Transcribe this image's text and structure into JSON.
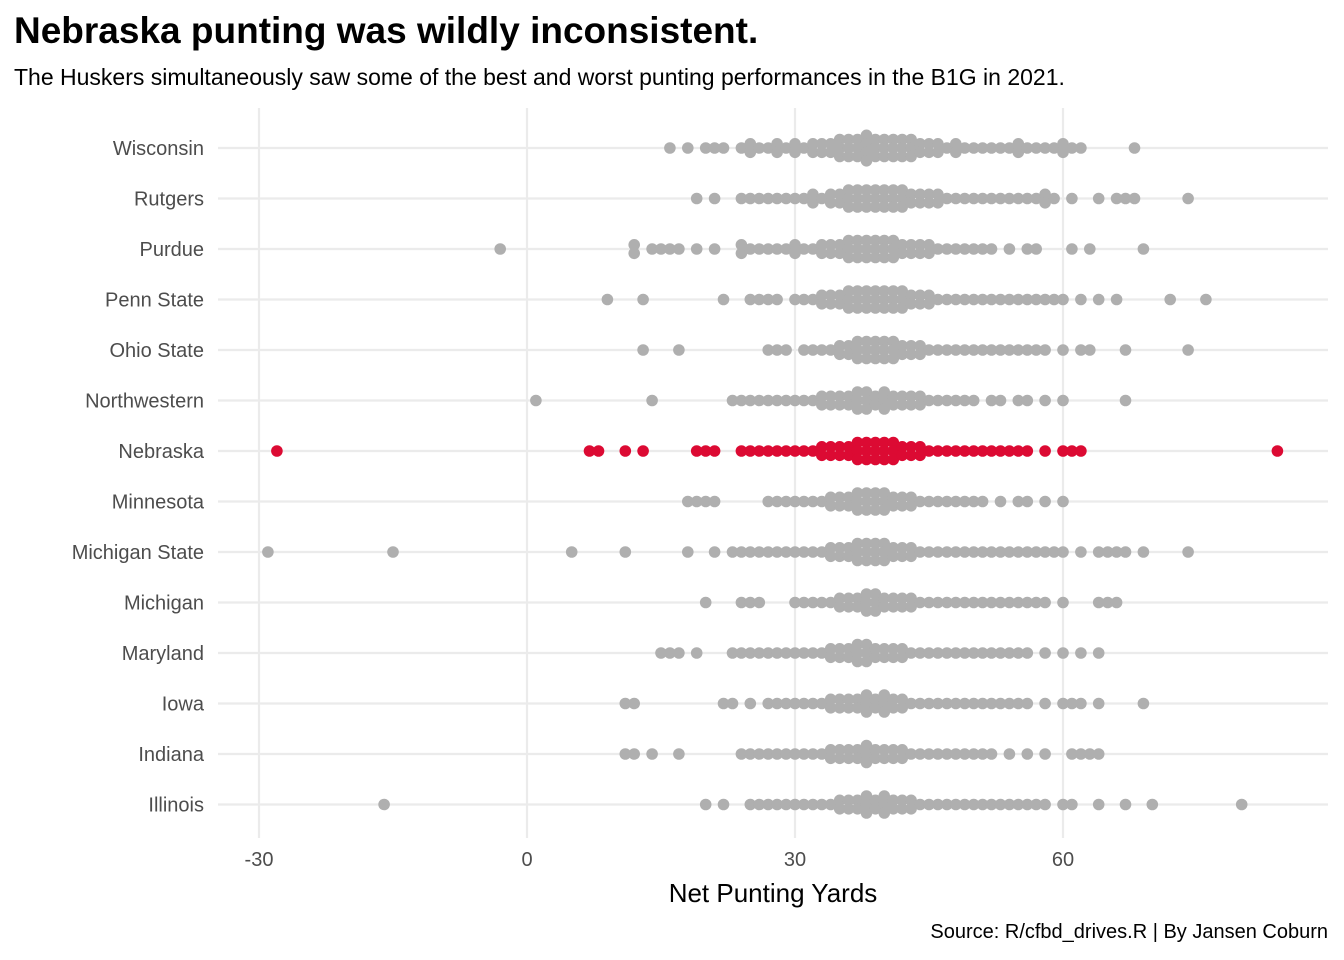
{
  "chart_data": {
    "type": "scatter",
    "subtype": "beeswarm",
    "title": "Nebraska punting was wildly inconsistent.",
    "subtitle": "The Huskers simultaneously saw some of the best and worst punting performances in the B1G in 2021.",
    "caption": "Source: R/cfbd_drives.R | By Jansen Coburn",
    "xlabel": "Net Punting Yards",
    "ylabel": "",
    "xlim": [
      -35,
      90
    ],
    "x_ticks": [
      -30,
      0,
      30,
      60
    ],
    "x_tick_labels": [
      "-30",
      "0",
      "30",
      "60"
    ],
    "grid": true,
    "legend": "none",
    "highlight": {
      "team": "Nebraska",
      "color": "#DC0A33"
    },
    "point_color": "#AFAFAF",
    "categories": [
      "Wisconsin",
      "Rutgers",
      "Purdue",
      "Penn State",
      "Ohio State",
      "Northwestern",
      "Nebraska",
      "Minnesota",
      "Michigan State",
      "Michigan",
      "Maryland",
      "Iowa",
      "Indiana",
      "Illinois"
    ],
    "series": [
      {
        "team": "Wisconsin",
        "values": [
          16,
          18,
          20,
          21,
          22,
          24,
          25,
          25,
          26,
          27,
          28,
          28,
          29,
          30,
          30,
          31,
          32,
          32,
          33,
          33,
          34,
          34,
          35,
          35,
          35,
          36,
          36,
          36,
          37,
          37,
          37,
          38,
          38,
          38,
          38,
          39,
          39,
          39,
          40,
          40,
          40,
          41,
          41,
          41,
          42,
          42,
          42,
          43,
          43,
          43,
          44,
          44,
          45,
          45,
          46,
          46,
          47,
          48,
          48,
          49,
          50,
          51,
          52,
          53,
          54,
          55,
          55,
          56,
          57,
          58,
          59,
          60,
          60,
          61,
          62,
          68
        ]
      },
      {
        "team": "Rutgers",
        "values": [
          19,
          21,
          24,
          25,
          26,
          27,
          28,
          29,
          30,
          31,
          32,
          32,
          33,
          34,
          34,
          35,
          35,
          36,
          36,
          36,
          37,
          37,
          37,
          38,
          38,
          38,
          39,
          39,
          39,
          40,
          40,
          40,
          41,
          41,
          41,
          42,
          42,
          42,
          43,
          43,
          44,
          44,
          45,
          45,
          46,
          46,
          47,
          48,
          49,
          50,
          51,
          52,
          53,
          54,
          55,
          56,
          57,
          58,
          58,
          59,
          61,
          64,
          66,
          67,
          68,
          74
        ]
      },
      {
        "team": "Purdue",
        "values": [
          -3,
          12,
          12,
          14,
          15,
          16,
          17,
          19,
          21,
          24,
          24,
          25,
          26,
          27,
          28,
          29,
          30,
          30,
          31,
          32,
          33,
          33,
          34,
          34,
          35,
          35,
          36,
          36,
          36,
          37,
          37,
          37,
          38,
          38,
          38,
          39,
          39,
          39,
          40,
          40,
          40,
          41,
          41,
          41,
          42,
          42,
          43,
          43,
          44,
          44,
          45,
          45,
          46,
          47,
          48,
          49,
          50,
          51,
          52,
          54,
          56,
          57,
          61,
          63,
          69
        ]
      },
      {
        "team": "Penn State",
        "values": [
          9,
          13,
          22,
          25,
          26,
          27,
          28,
          30,
          31,
          32,
          33,
          33,
          34,
          34,
          35,
          35,
          36,
          36,
          36,
          37,
          37,
          37,
          38,
          38,
          38,
          39,
          39,
          39,
          40,
          40,
          40,
          41,
          41,
          41,
          42,
          42,
          42,
          43,
          43,
          44,
          44,
          45,
          45,
          46,
          47,
          48,
          49,
          50,
          51,
          52,
          53,
          54,
          55,
          56,
          57,
          58,
          59,
          60,
          62,
          64,
          66,
          72,
          76
        ]
      },
      {
        "team": "Ohio State",
        "values": [
          13,
          17,
          27,
          28,
          29,
          31,
          32,
          33,
          34,
          35,
          35,
          36,
          36,
          37,
          37,
          37,
          38,
          38,
          38,
          39,
          39,
          39,
          40,
          40,
          40,
          41,
          41,
          41,
          42,
          42,
          43,
          43,
          44,
          44,
          45,
          46,
          47,
          48,
          49,
          50,
          51,
          52,
          53,
          54,
          55,
          56,
          57,
          58,
          60,
          62,
          63,
          67,
          74
        ]
      },
      {
        "team": "Northwestern",
        "values": [
          1,
          14,
          23,
          24,
          25,
          26,
          27,
          28,
          29,
          30,
          31,
          32,
          33,
          33,
          34,
          34,
          35,
          35,
          36,
          36,
          37,
          37,
          37,
          38,
          38,
          38,
          39,
          39,
          40,
          40,
          40,
          41,
          41,
          42,
          42,
          43,
          43,
          44,
          44,
          45,
          46,
          47,
          48,
          49,
          50,
          52,
          53,
          55,
          56,
          58,
          60,
          67
        ]
      },
      {
        "team": "Nebraska",
        "values": [
          -28,
          7,
          8,
          11,
          13,
          19,
          20,
          21,
          24,
          25,
          26,
          27,
          28,
          29,
          30,
          31,
          32,
          33,
          33,
          34,
          34,
          35,
          35,
          36,
          36,
          37,
          37,
          37,
          38,
          38,
          38,
          39,
          39,
          39,
          40,
          40,
          40,
          41,
          41,
          41,
          42,
          42,
          43,
          43,
          44,
          44,
          45,
          46,
          47,
          48,
          49,
          50,
          51,
          52,
          53,
          54,
          55,
          56,
          58,
          60,
          61,
          62,
          84
        ]
      },
      {
        "team": "Minnesota",
        "values": [
          18,
          19,
          20,
          21,
          27,
          28,
          29,
          30,
          31,
          32,
          33,
          34,
          34,
          35,
          35,
          36,
          36,
          37,
          37,
          37,
          38,
          38,
          38,
          39,
          39,
          39,
          40,
          40,
          40,
          41,
          41,
          42,
          42,
          43,
          43,
          44,
          45,
          46,
          47,
          48,
          49,
          50,
          51,
          53,
          55,
          56,
          58,
          60
        ]
      },
      {
        "team": "Michigan State",
        "values": [
          -29,
          -15,
          5,
          11,
          18,
          21,
          23,
          24,
          25,
          26,
          27,
          28,
          29,
          30,
          31,
          32,
          33,
          34,
          34,
          35,
          35,
          36,
          36,
          37,
          37,
          37,
          38,
          38,
          38,
          39,
          39,
          39,
          40,
          40,
          40,
          41,
          41,
          42,
          42,
          43,
          43,
          44,
          45,
          46,
          47,
          48,
          49,
          50,
          51,
          52,
          53,
          54,
          55,
          56,
          57,
          58,
          59,
          60,
          62,
          64,
          65,
          66,
          67,
          69,
          74
        ]
      },
      {
        "team": "Michigan",
        "values": [
          20,
          24,
          25,
          26,
          30,
          31,
          32,
          33,
          34,
          35,
          35,
          36,
          36,
          37,
          37,
          38,
          38,
          38,
          39,
          39,
          39,
          40,
          40,
          41,
          41,
          42,
          42,
          43,
          43,
          44,
          45,
          46,
          47,
          48,
          49,
          50,
          51,
          52,
          53,
          54,
          55,
          56,
          57,
          58,
          60,
          64,
          65,
          66
        ]
      },
      {
        "team": "Maryland",
        "values": [
          15,
          16,
          17,
          19,
          23,
          24,
          25,
          26,
          27,
          28,
          29,
          30,
          31,
          32,
          33,
          34,
          34,
          35,
          35,
          36,
          36,
          37,
          37,
          37,
          38,
          38,
          38,
          39,
          39,
          40,
          40,
          41,
          41,
          42,
          42,
          43,
          44,
          45,
          46,
          47,
          48,
          49,
          50,
          51,
          52,
          53,
          54,
          55,
          56,
          58,
          60,
          62,
          64
        ]
      },
      {
        "team": "Iowa",
        "values": [
          11,
          12,
          22,
          23,
          25,
          27,
          28,
          29,
          30,
          31,
          32,
          33,
          34,
          34,
          35,
          35,
          36,
          36,
          37,
          37,
          38,
          38,
          38,
          39,
          39,
          40,
          40,
          40,
          41,
          41,
          42,
          42,
          43,
          44,
          45,
          46,
          47,
          48,
          49,
          50,
          51,
          52,
          53,
          54,
          55,
          56,
          58,
          60,
          61,
          62,
          64,
          69
        ]
      },
      {
        "team": "Indiana",
        "values": [
          11,
          12,
          14,
          17,
          24,
          25,
          26,
          27,
          28,
          29,
          30,
          31,
          32,
          33,
          34,
          34,
          35,
          35,
          36,
          36,
          37,
          37,
          38,
          38,
          38,
          39,
          39,
          40,
          40,
          41,
          41,
          42,
          42,
          43,
          44,
          45,
          46,
          47,
          48,
          49,
          50,
          51,
          52,
          54,
          56,
          58,
          61,
          62,
          63,
          64
        ]
      },
      {
        "team": "Illinois",
        "values": [
          -16,
          20,
          22,
          25,
          26,
          27,
          28,
          29,
          30,
          31,
          32,
          33,
          34,
          35,
          35,
          36,
          36,
          37,
          37,
          38,
          38,
          38,
          39,
          39,
          40,
          40,
          40,
          41,
          41,
          42,
          42,
          43,
          43,
          44,
          45,
          46,
          47,
          48,
          49,
          50,
          51,
          52,
          53,
          54,
          55,
          56,
          57,
          58,
          60,
          61,
          64,
          67,
          70,
          80
        ]
      }
    ]
  }
}
